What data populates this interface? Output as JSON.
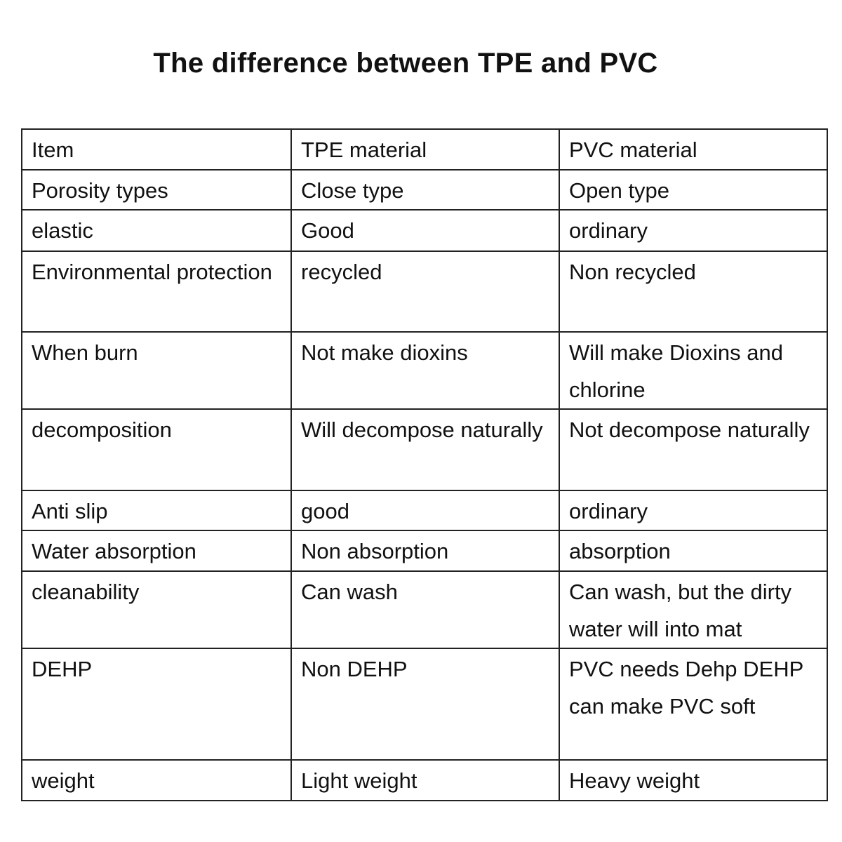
{
  "title": "The difference between TPE and PVC",
  "table": {
    "rows": [
      {
        "item": "Item",
        "tpe": "TPE material",
        "pvc": "PVC material"
      },
      {
        "item": "Porosity types",
        "tpe": "Close type",
        "pvc": "Open type"
      },
      {
        "item": "elastic",
        "tpe": "Good",
        "pvc": "ordinary"
      },
      {
        "item": "Environmental protection",
        "tpe": "recycled",
        "pvc": "Non recycled"
      },
      {
        "item": "When burn",
        "tpe": "Not make dioxins",
        "pvc": "Will make Dioxins and chlorine"
      },
      {
        "item": "decomposition",
        "tpe": "Will decompose naturally",
        "pvc": "Not decompose naturally"
      },
      {
        "item": "Anti slip",
        "tpe": "good",
        "pvc": "ordinary"
      },
      {
        "item": "Water absorption",
        "tpe": "Non absorption",
        "pvc": "absorption"
      },
      {
        "item": "cleanability",
        "tpe": "Can wash",
        "pvc": "Can wash, but the dirty water will into mat"
      },
      {
        "item": "DEHP",
        "tpe": "Non DEHP",
        "pvc": "PVC needs Dehp DEHP can make PVC soft"
      },
      {
        "item": "weight",
        "tpe": "Light weight",
        "pvc": "Heavy weight"
      }
    ]
  }
}
